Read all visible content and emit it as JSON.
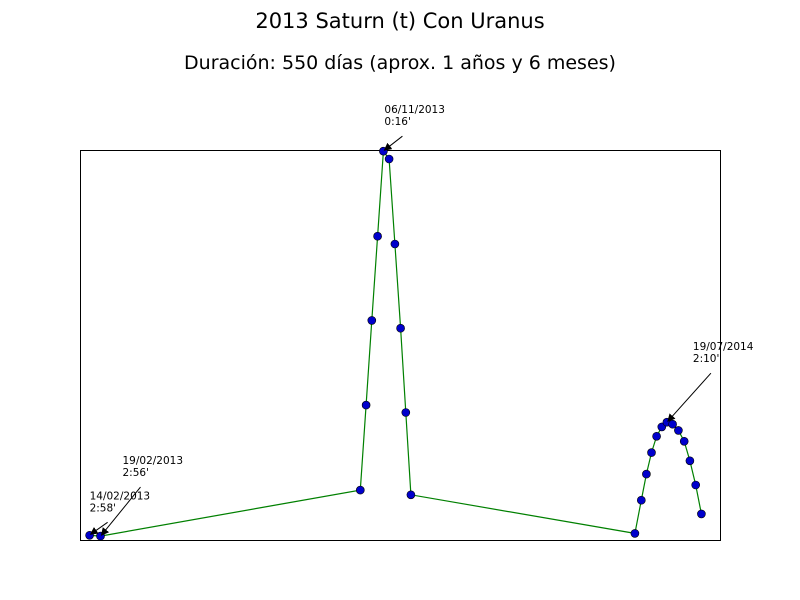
{
  "chart_data": {
    "type": "line",
    "title": "2013 Saturn (t) Con Uranus",
    "subtitle": "Duración: 550 días (aprox. 1 años y 6 meses)",
    "xlabel": "",
    "ylabel": "",
    "xlim": [
      0,
      100
    ],
    "ylim": [
      0,
      100
    ],
    "grid": false,
    "ticks_visible": false,
    "line_color": "#008000",
    "marker_color": "#0000cc",
    "series": [
      {
        "points": [
          [
            1.5,
            1.2
          ],
          [
            3.2,
            1.0
          ],
          [
            43.8,
            12.8
          ],
          [
            44.7,
            34.6
          ],
          [
            45.6,
            56.3
          ],
          [
            46.5,
            77.9
          ],
          [
            47.4,
            99.7
          ],
          [
            48.3,
            97.7
          ],
          [
            49.2,
            75.9
          ],
          [
            50.1,
            54.3
          ],
          [
            50.9,
            32.7
          ],
          [
            51.7,
            11.6
          ],
          [
            86.7,
            1.7
          ],
          [
            87.7,
            10.2
          ],
          [
            88.5,
            16.9
          ],
          [
            89.3,
            22.4
          ],
          [
            90.1,
            26.6
          ],
          [
            90.9,
            29.0
          ],
          [
            91.7,
            30.2
          ],
          [
            92.6,
            29.7
          ],
          [
            93.5,
            28.1
          ],
          [
            94.4,
            25.3
          ],
          [
            95.3,
            20.3
          ],
          [
            96.2,
            14.1
          ],
          [
            97.1,
            6.7
          ]
        ]
      }
    ],
    "annotations": [
      {
        "date": "14/02/2013",
        "value": "2:58'",
        "point": [
          1.5,
          1.2
        ]
      },
      {
        "date": "19/02/2013",
        "value": "2:56'",
        "point": [
          3.2,
          1.0
        ]
      },
      {
        "date": "06/11/2013",
        "value": "0:16'",
        "point": [
          47.4,
          99.7
        ]
      },
      {
        "date": "19/07/2014",
        "value": "2:10'",
        "point": [
          91.7,
          30.2
        ]
      }
    ]
  }
}
